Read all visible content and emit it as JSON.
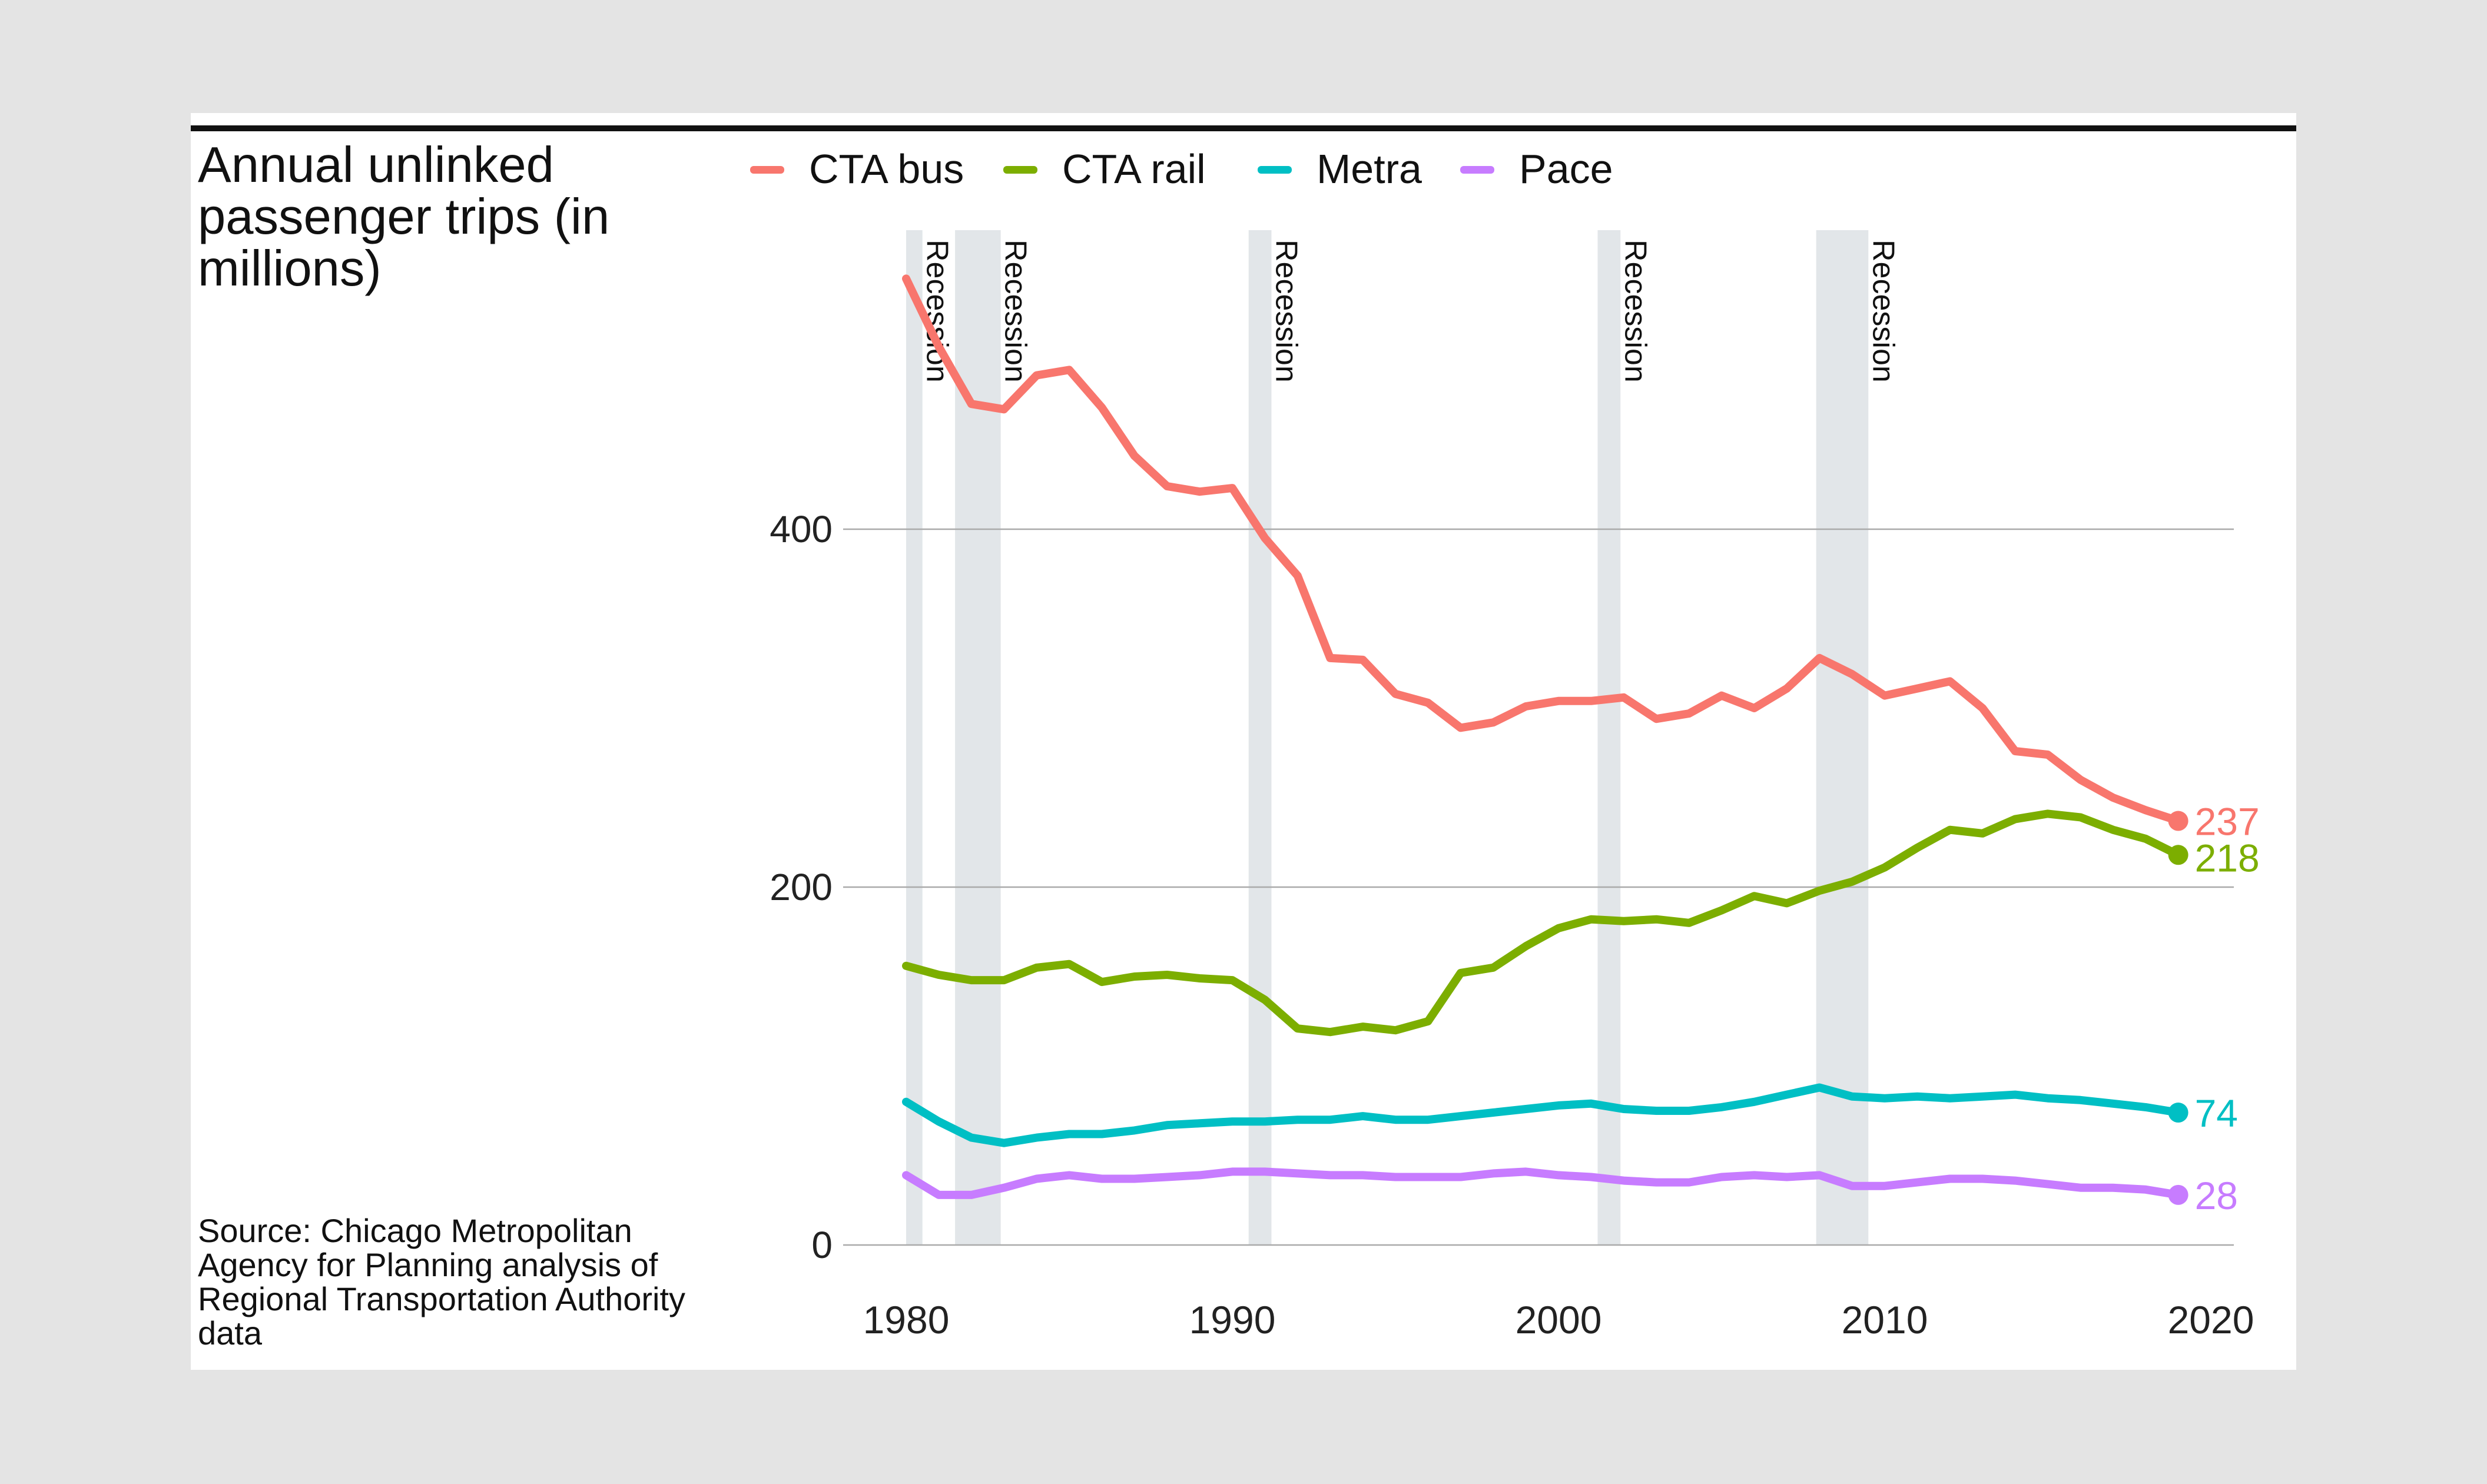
{
  "title_lines": [
    "Annual unlinked",
    "passenger trips (in",
    "millions)"
  ],
  "source_lines": [
    "Source: Chicago Metropolitan",
    "Agency for Planning analysis of",
    "Regional Transportation Authority",
    "data"
  ],
  "colors": {
    "background": "#e4e4e4",
    "card": "#ffffff",
    "rule": "#111111",
    "gridline": "#aaaaaa",
    "recession": "#e2e6e9"
  },
  "chart_data": {
    "type": "line",
    "title": "Annual unlinked passenger trips (in millions)",
    "xlim": [
      1980,
      2020
    ],
    "ylim": [
      0,
      550
    ],
    "x_ticks": [
      1980,
      1990,
      2000,
      2010,
      2020
    ],
    "y_ticks": [
      0,
      200,
      400
    ],
    "grid": "horizontal",
    "legend_position": "top",
    "recessions": [
      {
        "label": "Recession",
        "start": 1980.0,
        "end": 1980.5
      },
      {
        "label": "Recession",
        "start": 1981.5,
        "end": 1982.9
      },
      {
        "label": "Recession",
        "start": 1990.5,
        "end": 1991.2
      },
      {
        "label": "Recession",
        "start": 2001.2,
        "end": 2001.9
      },
      {
        "label": "Recession",
        "start": 2007.9,
        "end": 2009.5
      }
    ],
    "x": [
      1980,
      1981,
      1982,
      1983,
      1984,
      1985,
      1986,
      1987,
      1988,
      1989,
      1990,
      1991,
      1992,
      1993,
      1994,
      1995,
      1996,
      1997,
      1998,
      1999,
      2000,
      2001,
      2002,
      2003,
      2004,
      2005,
      2006,
      2007,
      2008,
      2009,
      2010,
      2011,
      2012,
      2013,
      2014,
      2015,
      2016,
      2017,
      2018,
      2019
    ],
    "series": [
      {
        "name": "CTA bus",
        "color": "#f8766d",
        "end_label": "237",
        "values": [
          540,
          502,
          470,
          467,
          486,
          489,
          468,
          441,
          424,
          421,
          423,
          395,
          374,
          328,
          327,
          308,
          303,
          289,
          292,
          301,
          304,
          304,
          306,
          294,
          297,
          307,
          300,
          311,
          328,
          319,
          307,
          311,
          315,
          300,
          276,
          274,
          260,
          250,
          243,
          237
        ]
      },
      {
        "name": "CTA rail",
        "color": "#7cae00",
        "end_label": "218",
        "values": [
          156,
          151,
          148,
          148,
          155,
          157,
          147,
          150,
          151,
          149,
          148,
          137,
          121,
          119,
          122,
          120,
          125,
          152,
          155,
          167,
          177,
          182,
          181,
          182,
          180,
          187,
          195,
          191,
          198,
          203,
          211,
          222,
          232,
          230,
          238,
          241,
          239,
          232,
          227,
          218
        ]
      },
      {
        "name": "Metra",
        "color": "#00bfc4",
        "end_label": "74",
        "values": [
          80,
          69,
          60,
          57,
          60,
          62,
          62,
          64,
          67,
          68,
          69,
          69,
          70,
          70,
          72,
          70,
          70,
          72,
          74,
          76,
          78,
          79,
          76,
          75,
          75,
          77,
          80,
          84,
          88,
          83,
          82,
          83,
          82,
          83,
          84,
          82,
          81,
          79,
          77,
          74
        ]
      },
      {
        "name": "Pace",
        "color": "#c77cff",
        "end_label": "28",
        "values": [
          39,
          28,
          28,
          32,
          37,
          39,
          37,
          37,
          38,
          39,
          41,
          41,
          40,
          39,
          39,
          38,
          38,
          38,
          40,
          41,
          39,
          38,
          36,
          35,
          35,
          38,
          39,
          38,
          39,
          33,
          33,
          35,
          37,
          37,
          36,
          34,
          32,
          32,
          31,
          28
        ]
      }
    ]
  }
}
